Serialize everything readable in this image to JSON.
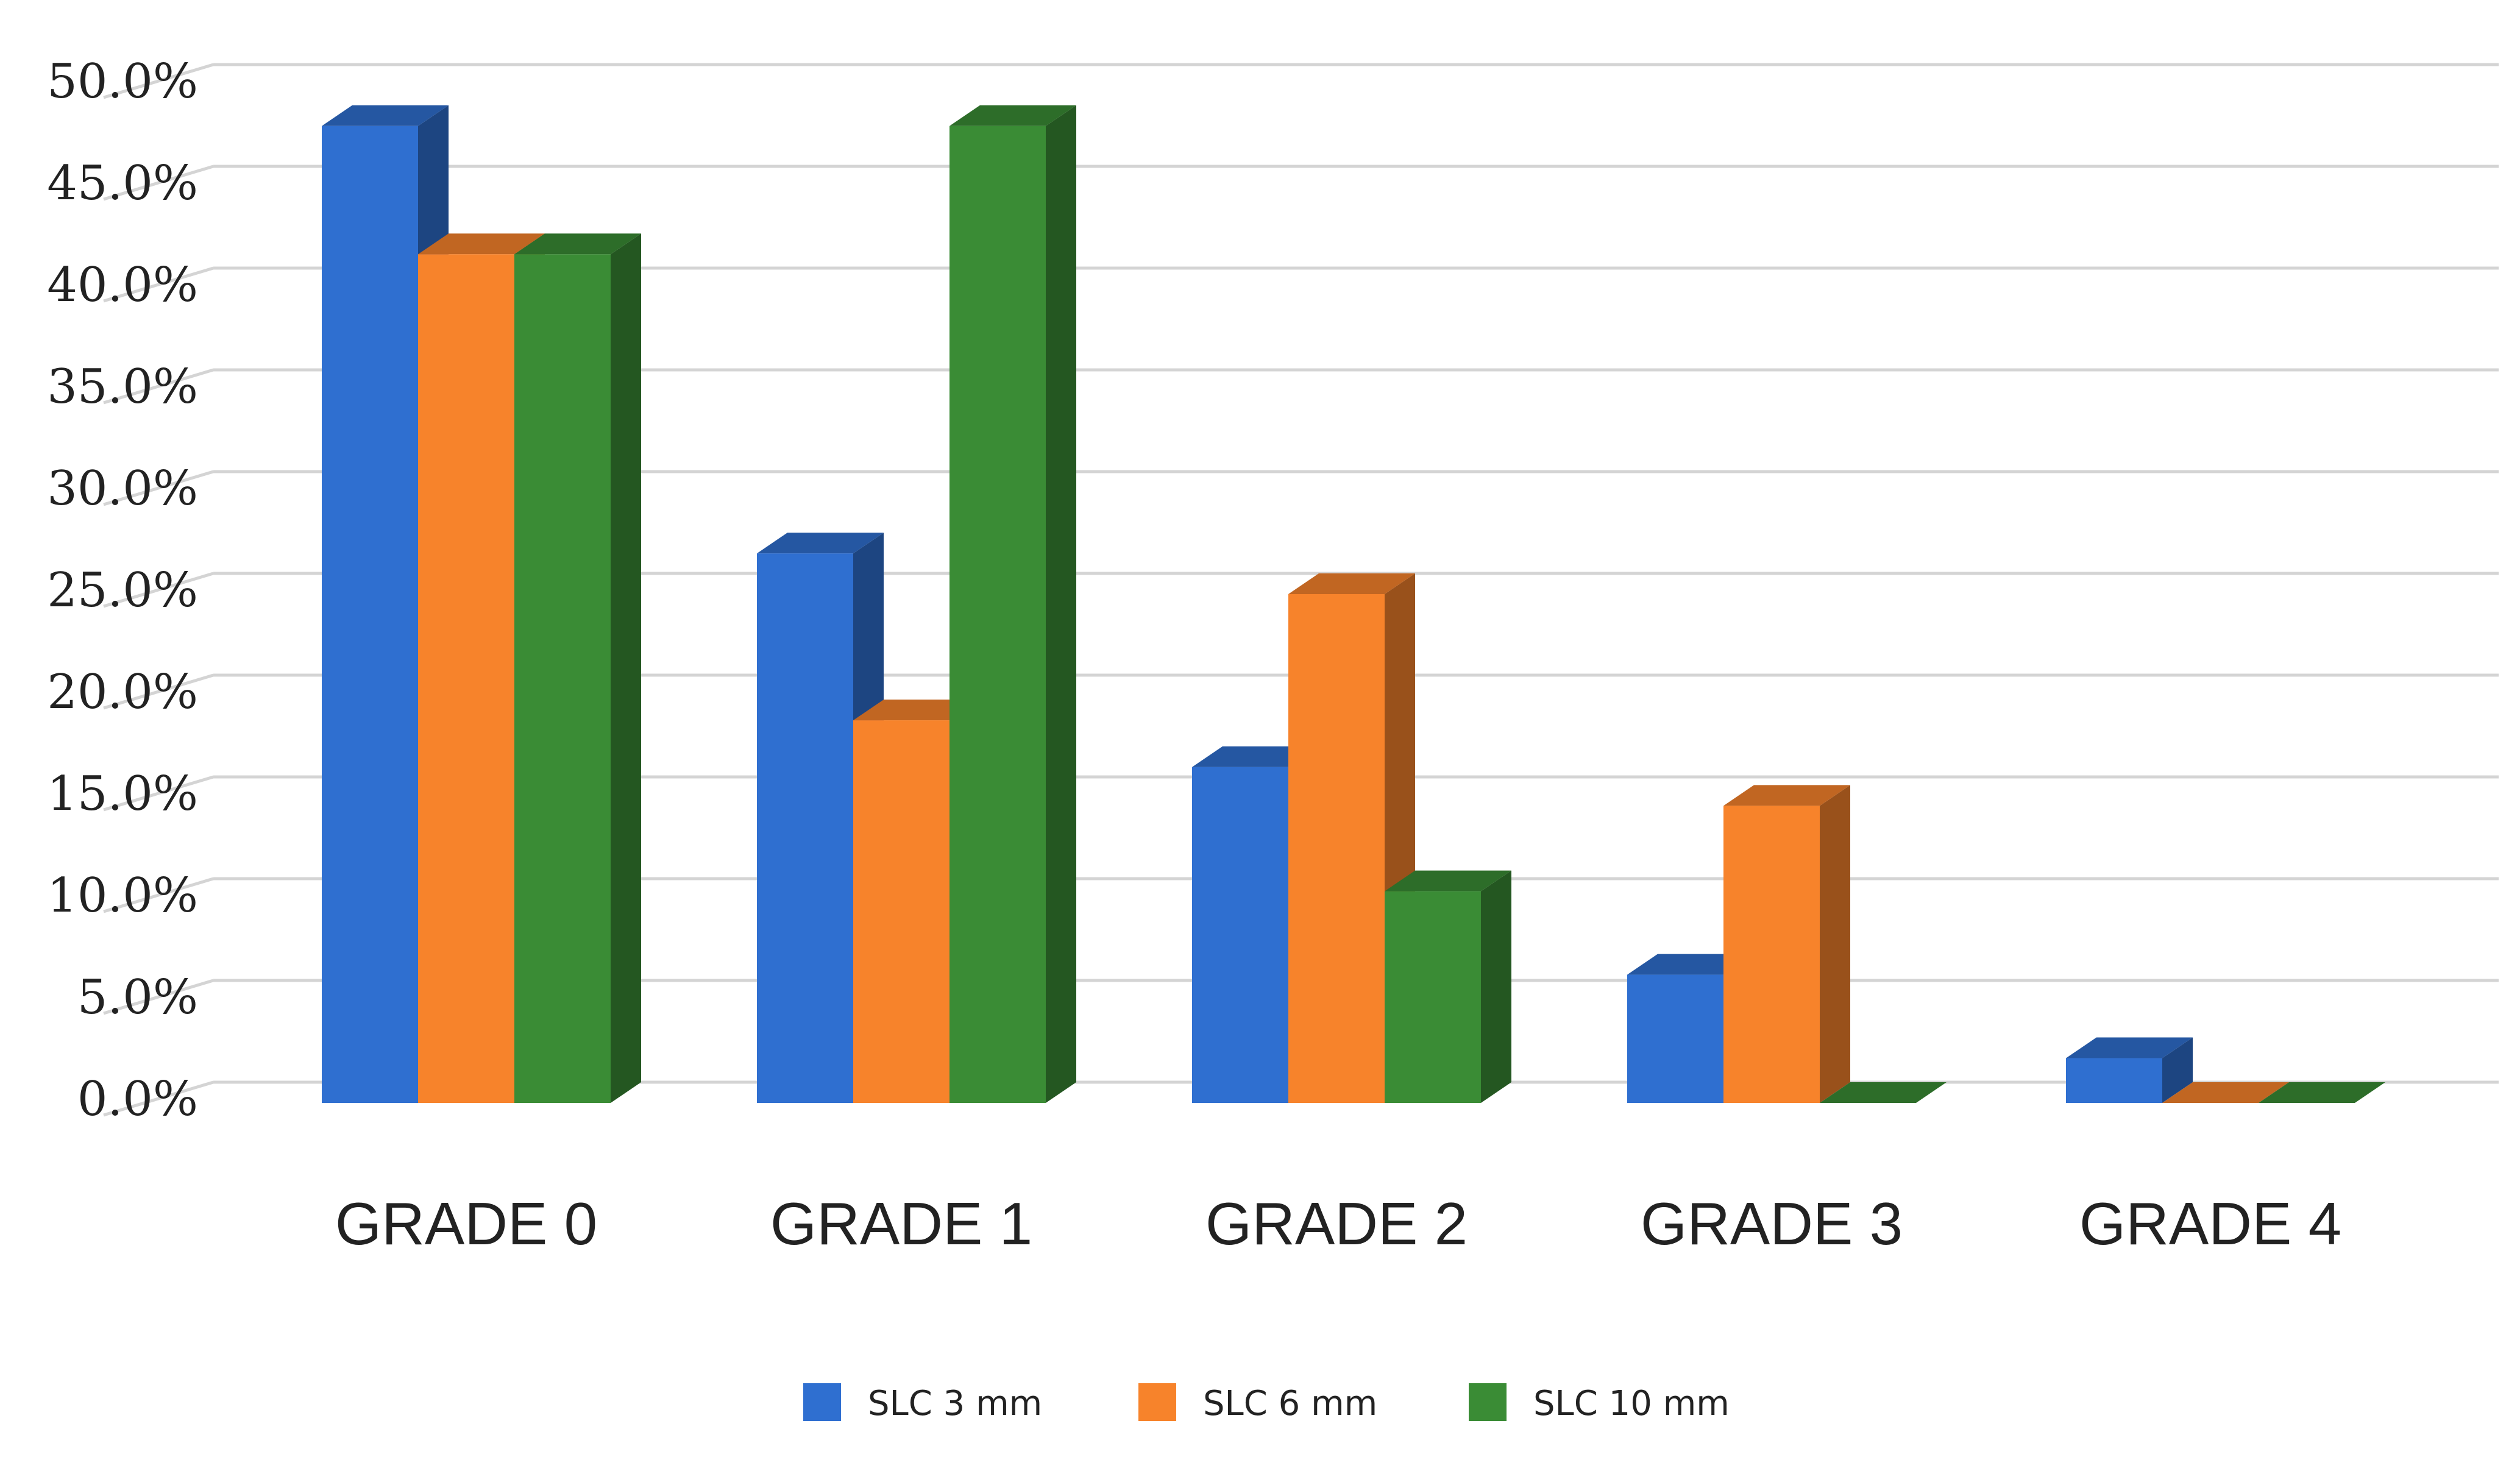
{
  "chart_data": {
    "type": "bar",
    "title": "",
    "xlabel": "",
    "ylabel": "",
    "categories": [
      "GRADE 0",
      "GRADE 1",
      "GRADE 2",
      "GRADE 3",
      "GRADE 4"
    ],
    "series": [
      {
        "name": "SLC 3 mm",
        "color": "#2f6fd0",
        "values": [
          48.0,
          27.0,
          16.5,
          6.3,
          2.2
        ]
      },
      {
        "name": "SLC 6 mm",
        "color": "#f7832b",
        "values": [
          41.7,
          18.8,
          25.0,
          14.6,
          0.0
        ]
      },
      {
        "name": "SLC 10 mm",
        "color": "#3a8c35",
        "values": [
          41.7,
          48.0,
          10.4,
          0.0,
          0.0
        ]
      }
    ],
    "yticks": [
      "0.0%",
      "5.0%",
      "10.0%",
      "15.0%",
      "20.0%",
      "25.0%",
      "30.0%",
      "35.0%",
      "40.0%",
      "45.0%",
      "50.0%"
    ],
    "ylim": [
      0,
      50
    ],
    "grid": true,
    "legend_position": "bottom",
    "style": "3d-column"
  }
}
